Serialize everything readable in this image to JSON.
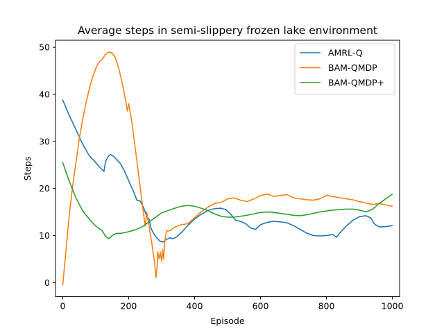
{
  "chart_data": {
    "type": "line",
    "title": "Average steps in semi-slippery frozen lake environment",
    "xlabel": "Episode",
    "ylabel": "Steps",
    "xlim": [
      -22,
      1022
    ],
    "ylim": [
      -3,
      51.5
    ],
    "xticks": [
      0,
      200,
      400,
      600,
      800,
      1000
    ],
    "yticks": [
      0,
      10,
      20,
      30,
      40,
      50
    ],
    "grid": false,
    "legend_position": "top-right",
    "series": [
      {
        "name": "AMRL-Q",
        "color": "#1f77b4",
        "x": [
          0,
          20,
          40,
          60,
          80,
          100,
          115,
          125,
          130,
          140,
          145,
          155,
          165,
          175,
          185,
          195,
          205,
          215,
          225,
          235,
          245,
          255,
          262,
          268,
          275,
          285,
          295,
          305,
          315,
          325,
          335,
          345,
          355,
          365,
          375,
          385,
          400,
          420,
          440,
          460,
          480,
          495,
          510,
          525,
          540,
          555,
          570,
          585,
          600,
          620,
          640,
          660,
          680,
          700,
          720,
          740,
          760,
          780,
          800,
          820,
          830,
          840,
          860,
          880,
          900,
          920,
          935,
          945,
          960,
          980,
          1000
        ],
        "y": [
          38.8,
          35.5,
          32.5,
          29.5,
          27.0,
          25.5,
          24.3,
          23.6,
          25.8,
          27.0,
          27.2,
          26.8,
          26.0,
          25.3,
          24.0,
          22.5,
          20.8,
          19.3,
          17.5,
          17.3,
          16.0,
          14.0,
          13.5,
          11.5,
          10.5,
          9.5,
          8.8,
          8.6,
          9.2,
          9.5,
          9.3,
          9.7,
          10.3,
          11.0,
          11.8,
          12.5,
          13.5,
          14.5,
          15.3,
          15.7,
          15.8,
          15.5,
          14.5,
          13.2,
          13.0,
          12.5,
          11.6,
          11.3,
          12.3,
          12.8,
          13.0,
          12.9,
          12.7,
          12.1,
          11.3,
          10.5,
          10.0,
          9.9,
          10.0,
          10.2,
          9.6,
          10.5,
          12.0,
          13.2,
          14.0,
          14.2,
          13.7,
          12.5,
          11.8,
          11.9,
          12.1
        ]
      },
      {
        "name": "BAM-QMDP",
        "color": "#ff7f0e",
        "x": [
          0,
          10,
          20,
          30,
          40,
          50,
          60,
          70,
          80,
          90,
          100,
          110,
          120,
          130,
          140,
          150,
          160,
          170,
          180,
          190,
          196,
          200,
          205,
          210,
          220,
          230,
          240,
          250,
          255,
          258,
          262,
          265,
          270,
          275,
          280,
          283,
          286,
          288,
          292,
          296,
          300,
          303,
          306,
          310,
          315,
          325,
          340,
          360,
          380,
          400,
          420,
          440,
          460,
          480,
          500,
          520,
          540,
          560,
          580,
          600,
          620,
          640,
          660,
          680,
          700,
          720,
          740,
          760,
          780,
          800,
          820,
          840,
          860,
          880,
          900,
          920,
          940,
          960,
          980,
          1000
        ],
        "y": [
          -0.5,
          7.0,
          14.5,
          20.5,
          25.5,
          30.5,
          34.5,
          38.0,
          41.0,
          43.5,
          45.5,
          46.8,
          47.5,
          48.5,
          49.0,
          48.8,
          47.8,
          45.5,
          42.5,
          39.0,
          36.5,
          38.0,
          36.0,
          34.0,
          28.5,
          23.0,
          17.5,
          12.0,
          15.0,
          13.5,
          12.0,
          10.5,
          8.5,
          6.0,
          3.5,
          1.0,
          3.0,
          6.5,
          5.0,
          6.5,
          4.5,
          7.0,
          5.0,
          9.0,
          11.0,
          11.0,
          11.8,
          12.3,
          12.5,
          13.8,
          15.0,
          16.0,
          16.8,
          17.0,
          17.8,
          18.0,
          17.5,
          17.2,
          17.8,
          18.5,
          18.8,
          18.3,
          18.5,
          18.7,
          18.0,
          17.8,
          17.6,
          17.5,
          17.8,
          18.5,
          18.3,
          18.0,
          17.8,
          17.6,
          17.2,
          16.9,
          16.6,
          16.8,
          16.5,
          16.2
        ]
      },
      {
        "name": "BAM-QMDP+",
        "color": "#2ca02c",
        "x": [
          0,
          20,
          40,
          60,
          80,
          100,
          120,
          130,
          140,
          150,
          160,
          180,
          200,
          220,
          240,
          260,
          280,
          300,
          320,
          340,
          360,
          380,
          400,
          420,
          440,
          460,
          480,
          500,
          520,
          540,
          560,
          580,
          600,
          620,
          640,
          660,
          680,
          700,
          720,
          740,
          760,
          780,
          800,
          820,
          840,
          860,
          880,
          900,
          920,
          940,
          960,
          980,
          1000
        ],
        "y": [
          25.5,
          21.5,
          18.0,
          15.3,
          13.5,
          12.0,
          11.0,
          9.8,
          9.3,
          10.0,
          10.4,
          10.5,
          10.8,
          11.2,
          11.8,
          12.8,
          13.8,
          14.8,
          15.3,
          15.8,
          16.2,
          16.4,
          16.2,
          15.8,
          15.3,
          14.6,
          14.1,
          13.9,
          13.9,
          14.1,
          14.3,
          14.6,
          14.9,
          15.0,
          14.9,
          14.7,
          14.5,
          14.3,
          14.2,
          14.4,
          14.7,
          15.0,
          15.2,
          15.4,
          15.5,
          15.6,
          15.6,
          15.4,
          15.0,
          15.6,
          16.8,
          17.8,
          18.8
        ]
      }
    ]
  }
}
